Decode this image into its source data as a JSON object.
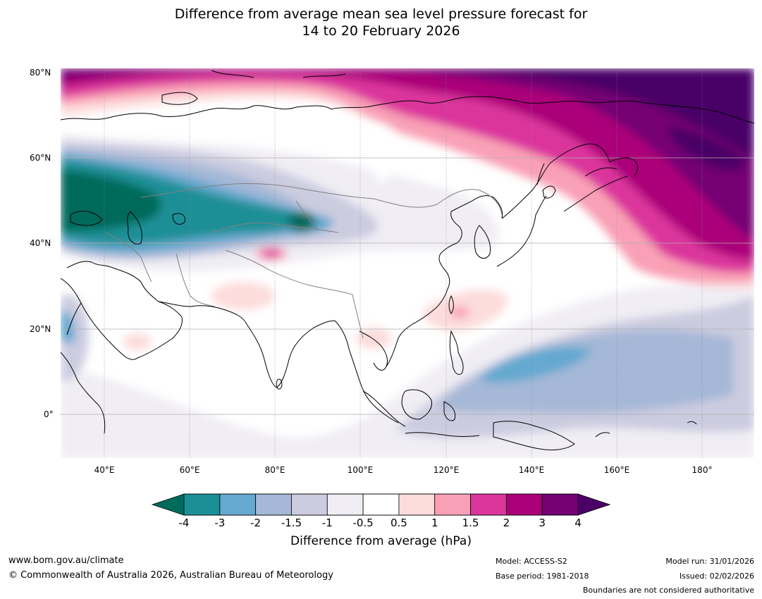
{
  "title": {
    "line1": "Difference from average mean sea level pressure forecast for",
    "line2": "14 to 20 February 2026"
  },
  "map": {
    "lat_labels": [
      "80°N",
      "60°N",
      "40°N",
      "20°N",
      "0°"
    ],
    "lon_labels": [
      "40°E",
      "60°E",
      "80°E",
      "100°E",
      "120°E",
      "140°E",
      "160°E",
      "180°"
    ],
    "lat_values": [
      80,
      60,
      40,
      20,
      0
    ],
    "lon_values": [
      40,
      60,
      80,
      100,
      120,
      140,
      160,
      180
    ],
    "extent": {
      "lon": [
        30,
        191
      ],
      "lat": [
        -10,
        81
      ]
    }
  },
  "colorbar": {
    "title": "Difference from average (hPa)",
    "tick_labels": [
      "-4",
      "-3",
      "-2",
      "-1.5",
      "-1",
      "-0.5",
      "0.5",
      "1",
      "1.5",
      "2",
      "3",
      "4"
    ],
    "colors": [
      "#1b8f96",
      "#65a9d0",
      "#a5b8d7",
      "#cccce0",
      "#f0edf4",
      "#ffffff",
      "#fddcdc",
      "#f9a0b6",
      "#db369c",
      "#ab0079",
      "#740073"
    ],
    "under_color": "#006b5a",
    "over_color": "#4a0066"
  },
  "footer": {
    "url": "www.bom.gov.au/climate",
    "copyright": "© Commonwealth of Australia 2026, Australian Bureau of Meteorology",
    "model": "Model: ACCESS-S2",
    "base_period": "Base period: 1981-2018",
    "model_run": "Model run: 31/01/2026",
    "issued": "Issued: 02/02/2026",
    "disclaimer": "Boundaries are not considered authoritative"
  }
}
